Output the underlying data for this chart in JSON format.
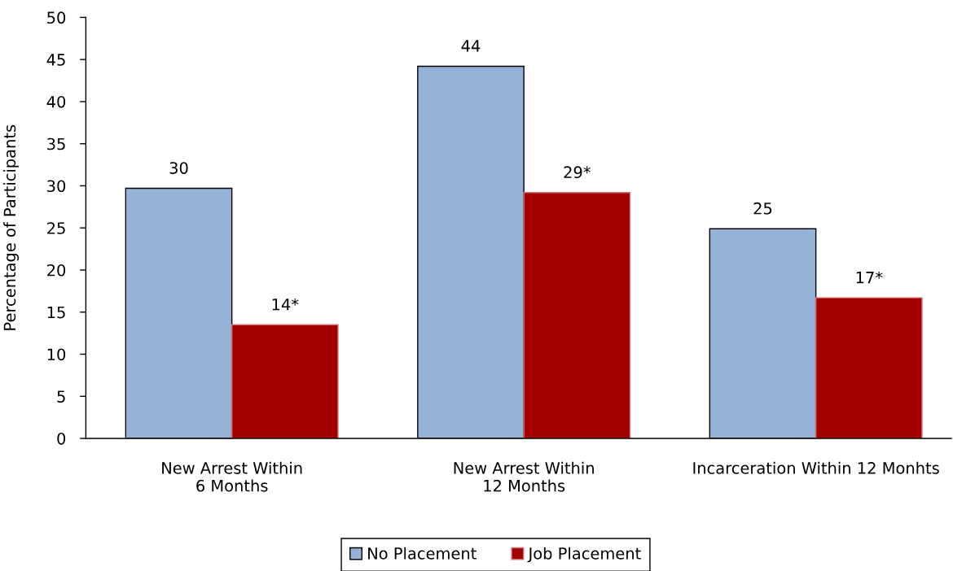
{
  "chart_data": {
    "type": "bar",
    "ylabel": "Percentage of Participants",
    "categories": [
      "New Arrest Within\n6 Months",
      "New Arrest Within\n12 Months",
      "Incarceration Within 12 Monhts"
    ],
    "series": [
      {
        "name": "No Placement",
        "color": "#95b3d7",
        "values": [
          29.7,
          44.2,
          24.9
        ],
        "value_labels": [
          "30",
          "44",
          "25"
        ]
      },
      {
        "name": "Job Placement",
        "color": "#a50000",
        "values": [
          13.5,
          29.2,
          16.7
        ],
        "value_labels": [
          "14*",
          "29*",
          "17*"
        ]
      }
    ],
    "ylim": [
      0,
      50
    ],
    "yticks": [
      0,
      5,
      10,
      15,
      20,
      25,
      30,
      35,
      40,
      45,
      50
    ],
    "legend": "bottom"
  }
}
